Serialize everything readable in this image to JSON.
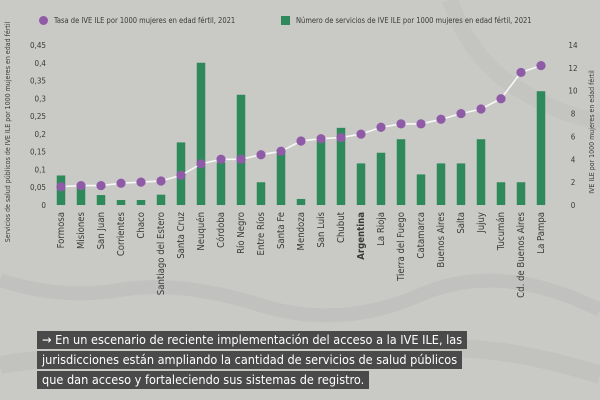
{
  "colors": {
    "bar": "#2e8a5a",
    "dot": "#8f5aa6",
    "line": "#ffffff",
    "text": "#3a3a3a",
    "note_bg": "#4a4a4a"
  },
  "note": {
    "lines": [
      "→ En un escenario de reciente implementación del acceso a la IVE ILE, las",
      "jurisdicciones están ampliando la cantidad de servicios de salud públicos",
      "que dan acceso y fortaleciendo sus sistemas de registro."
    ]
  },
  "chart_data": {
    "type": "bar",
    "legend_placement": "top",
    "legend": {
      "dots": "Tasa de IVE ILE por 1000 mujeres en edad fértil, 2021",
      "bars": "Número de servicios de IVE ILE por 1000 mujeres en edad fértil, 2021"
    },
    "ylabel_left": "Servicios de salud públicos de IVE ILE por 1000 mujeres en edad fértil",
    "ylabel_right": "IVE ILE por 1000 mujeres en edad fértil",
    "ylim_left": [
      0,
      0.45
    ],
    "yticks_left": [
      "0",
      "0,05",
      "0,1",
      "0,15",
      "0,2",
      "0,25",
      "0,3",
      "0,35",
      "0,4",
      "0,45"
    ],
    "ylim_right": [
      0,
      14
    ],
    "yticks_right": [
      "0",
      "2",
      "4",
      "6",
      "8",
      "10",
      "12",
      "14"
    ],
    "categories": [
      "Formosa",
      "Misiones",
      "San Juan",
      "Corrientes",
      "Chaco",
      "Santiago del Estero",
      "Santa Cruz",
      "Neuquén",
      "Córdoba",
      "Río Negro",
      "Entre Ríos",
      "Santa Fe",
      "Mendoza",
      "San Luis",
      "Chubut",
      "Argentina",
      "La Rioja",
      "Tierra del Fuego",
      "Catamarca",
      "Buenos Aires",
      "Salta",
      "Jujuy",
      "Tucumán",
      "Cd. de Buenos Aires",
      "La Pampa"
    ],
    "highlight_category": "Argentina",
    "series": [
      {
        "name": "Número de servicios de IVE ILE por 1000 mujeres en edad fértil, 2021",
        "type": "bar",
        "axis": "left",
        "values": [
          0.083,
          0.052,
          0.028,
          0.014,
          0.014,
          0.029,
          0.176,
          0.4,
          0.12,
          0.31,
          0.064,
          0.15,
          0.017,
          0.18,
          0.217,
          0.117,
          0.147,
          0.185,
          0.086,
          0.117,
          0.117,
          0.185,
          0.064,
          0.064,
          0.32
        ]
      },
      {
        "name": "Tasa de IVE ILE por 1000 mujeres en edad fértil, 2021",
        "type": "scatter",
        "axis": "right",
        "values": [
          1.6,
          1.7,
          1.7,
          1.9,
          2.0,
          2.1,
          2.6,
          3.6,
          4.0,
          4.0,
          4.4,
          4.7,
          5.6,
          5.8,
          5.9,
          6.2,
          6.8,
          7.1,
          7.1,
          7.5,
          8.0,
          8.4,
          9.3,
          11.6,
          12.2
        ]
      }
    ]
  }
}
